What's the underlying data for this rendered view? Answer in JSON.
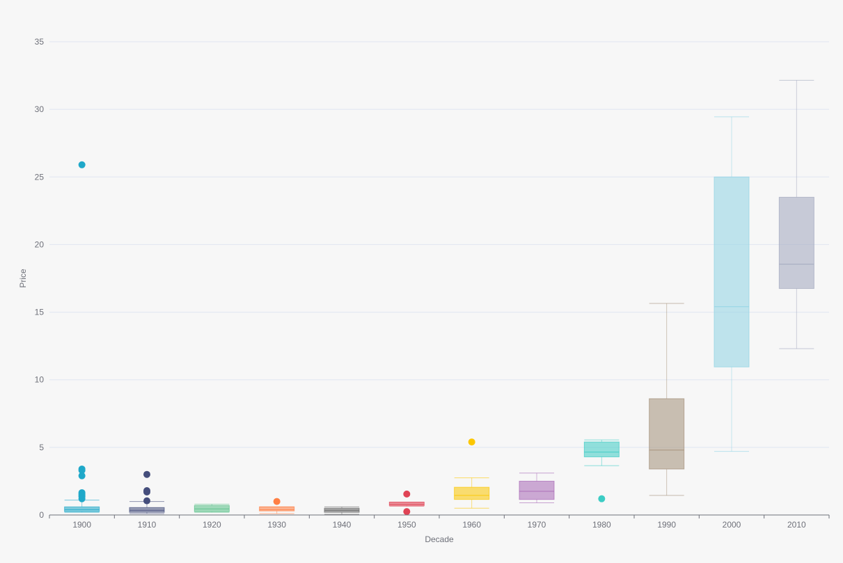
{
  "chart_data": {
    "type": "boxplot",
    "xlabel": "Decade",
    "ylabel": "Price",
    "ylim": [
      0,
      35
    ],
    "yticks": [
      0,
      5,
      10,
      15,
      20,
      25,
      30,
      35
    ],
    "grid": true,
    "categories": [
      "1900",
      "1910",
      "1920",
      "1930",
      "1940",
      "1950",
      "1960",
      "1970",
      "1980",
      "1990",
      "2000",
      "2010"
    ],
    "colors": [
      "#1fa8c9",
      "#454e7c",
      "#5ac189",
      "#ff7f44",
      "#666666",
      "#e04355",
      "#fcc700",
      "#a868b7",
      "#3cccc4",
      "#a38f79",
      "#8fd3e4",
      "#a1a6bd"
    ],
    "boxes": [
      {
        "min": 0.2,
        "q1": 0.25,
        "median": 0.4,
        "q3": 0.6,
        "max": 1.1
      },
      {
        "min": 0.1,
        "q1": 0.2,
        "median": 0.35,
        "q3": 0.55,
        "max": 1.0
      },
      {
        "min": 0.2,
        "q1": 0.25,
        "median": 0.45,
        "q3": 0.7,
        "max": 0.8
      },
      {
        "min": 0.1,
        "q1": 0.3,
        "median": 0.4,
        "q3": 0.6,
        "max": 0.6
      },
      {
        "min": 0.05,
        "q1": 0.2,
        "median": 0.35,
        "q3": 0.5,
        "max": 0.6
      },
      {
        "min": 0.65,
        "q1": 0.7,
        "median": 0.8,
        "q3": 0.95,
        "max": 0.95
      },
      {
        "min": 0.5,
        "q1": 1.15,
        "median": 1.45,
        "q3": 2.05,
        "max": 2.75
      },
      {
        "min": 0.9,
        "q1": 1.15,
        "median": 1.75,
        "q3": 2.5,
        "max": 3.1
      },
      {
        "min": 3.65,
        "q1": 4.3,
        "median": 4.65,
        "q3": 5.4,
        "max": 5.55
      },
      {
        "min": 1.45,
        "q1": 3.4,
        "median": 4.8,
        "q3": 8.6,
        "max": 15.65
      },
      {
        "min": 4.7,
        "q1": 10.95,
        "median": 15.4,
        "q3": 25.0,
        "max": 29.45
      },
      {
        "min": 12.3,
        "q1": 16.75,
        "median": 18.55,
        "q3": 23.5,
        "max": 32.15
      }
    ],
    "outliers": [
      {
        "category": "1900",
        "value": 25.9
      },
      {
        "category": "1900",
        "value": 3.4
      },
      {
        "category": "1900",
        "value": 3.3
      },
      {
        "category": "1900",
        "value": 2.9
      },
      {
        "category": "1900",
        "value": 1.65
      },
      {
        "category": "1900",
        "value": 1.55
      },
      {
        "category": "1900",
        "value": 1.45
      },
      {
        "category": "1900",
        "value": 1.35
      },
      {
        "category": "1900",
        "value": 1.2
      },
      {
        "category": "1910",
        "value": 3.0
      },
      {
        "category": "1910",
        "value": 1.8
      },
      {
        "category": "1910",
        "value": 1.7
      },
      {
        "category": "1910",
        "value": 1.05
      },
      {
        "category": "1930",
        "value": 1.0
      },
      {
        "category": "1950",
        "value": 1.55
      },
      {
        "category": "1950",
        "value": 0.25
      },
      {
        "category": "1960",
        "value": 5.4
      },
      {
        "category": "1980",
        "value": 1.2
      }
    ]
  }
}
